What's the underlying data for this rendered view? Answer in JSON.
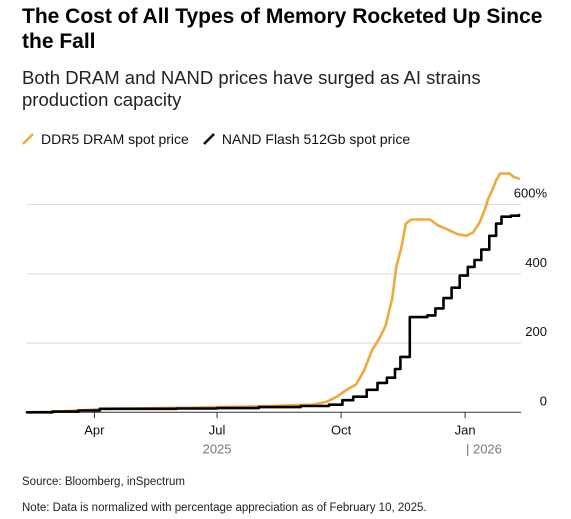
{
  "header": {
    "title": "The Cost of All Types of Memory Rocketed Up Since the Fall",
    "subtitle": "Both DRAM and NAND prices have surged as AI strains production capacity"
  },
  "footer": {
    "source": "Source: Bloomberg, inSpectrum",
    "note": "Note: Data is normalized with percentage appreciation as of February 10, 2025."
  },
  "colors": {
    "dram": "#f0a93b",
    "nand": "#000000",
    "grid": "#d9d9d9",
    "axis": "#333333"
  },
  "chart_data": {
    "type": "line",
    "title": "The Cost of All Types of Memory Rocketed Up Since the Fall",
    "subtitle": "Both DRAM and NAND prices have surged as AI strains production capacity",
    "xlabel": "",
    "ylabel": "",
    "xlim": [
      "2025-02-10",
      "2026-02-10"
    ],
    "ylim": [
      -5,
      700
    ],
    "y_ticks": [
      0,
      200,
      400,
      600
    ],
    "y_tick_labels": [
      "0",
      "200",
      "400",
      "600%"
    ],
    "x_ticks": [
      "2025-04-01",
      "2025-07-01",
      "2025-10-01",
      "2026-01-01"
    ],
    "x_tick_labels": [
      "Apr",
      "Jul",
      "Oct",
      "Jan"
    ],
    "year_labels": [
      {
        "date": "2025-07-01",
        "label": "2025"
      },
      {
        "date": "2026-01-15",
        "label": "| 2026"
      }
    ],
    "grid": true,
    "legend_position": "top-left",
    "series": [
      {
        "name": "DDR5 DRAM spot price",
        "color": "#f0a93b",
        "step": false,
        "points": [
          [
            "2025-02-10",
            0
          ],
          [
            "2025-02-25",
            1
          ],
          [
            "2025-03-10",
            3
          ],
          [
            "2025-03-25",
            6
          ],
          [
            "2025-04-10",
            10
          ],
          [
            "2025-05-01",
            11
          ],
          [
            "2025-05-20",
            12
          ],
          [
            "2025-06-10",
            13
          ],
          [
            "2025-07-01",
            15
          ],
          [
            "2025-07-20",
            16
          ],
          [
            "2025-08-10",
            18
          ],
          [
            "2025-08-25",
            20
          ],
          [
            "2025-09-10",
            22
          ],
          [
            "2025-09-20",
            30
          ],
          [
            "2025-09-28",
            45
          ],
          [
            "2025-10-05",
            65
          ],
          [
            "2025-10-12",
            80
          ],
          [
            "2025-10-18",
            120
          ],
          [
            "2025-10-24",
            180
          ],
          [
            "2025-10-29",
            210
          ],
          [
            "2025-11-03",
            250
          ],
          [
            "2025-11-08",
            330
          ],
          [
            "2025-11-11",
            420
          ],
          [
            "2025-11-15",
            480
          ],
          [
            "2025-11-18",
            545
          ],
          [
            "2025-11-22",
            557
          ],
          [
            "2025-12-01",
            557
          ],
          [
            "2025-12-06",
            557
          ],
          [
            "2025-12-12",
            540
          ],
          [
            "2025-12-18",
            530
          ],
          [
            "2025-12-26",
            515
          ],
          [
            "2026-01-02",
            510
          ],
          [
            "2026-01-07",
            520
          ],
          [
            "2026-01-12",
            550
          ],
          [
            "2026-01-16",
            590
          ],
          [
            "2026-01-18",
            615
          ],
          [
            "2026-01-21",
            640
          ],
          [
            "2026-01-24",
            670
          ],
          [
            "2026-01-27",
            690
          ],
          [
            "2026-02-03",
            690
          ],
          [
            "2026-02-06",
            680
          ],
          [
            "2026-02-10",
            675
          ]
        ]
      },
      {
        "name": "NAND Flash 512Gb spot price",
        "color": "#000000",
        "step": true,
        "points": [
          [
            "2025-02-10",
            0
          ],
          [
            "2025-03-01",
            2
          ],
          [
            "2025-03-20",
            5
          ],
          [
            "2025-04-05",
            10
          ],
          [
            "2025-05-01",
            10
          ],
          [
            "2025-06-01",
            11
          ],
          [
            "2025-07-01",
            12
          ],
          [
            "2025-08-01",
            15
          ],
          [
            "2025-09-01",
            18
          ],
          [
            "2025-09-22",
            22
          ],
          [
            "2025-10-02",
            35
          ],
          [
            "2025-10-10",
            45
          ],
          [
            "2025-10-20",
            65
          ],
          [
            "2025-10-28",
            85
          ],
          [
            "2025-11-04",
            100
          ],
          [
            "2025-11-10",
            125
          ],
          [
            "2025-11-14",
            160
          ],
          [
            "2025-11-21",
            275
          ],
          [
            "2025-12-04",
            280
          ],
          [
            "2025-12-10",
            300
          ],
          [
            "2025-12-16",
            330
          ],
          [
            "2025-12-22",
            360
          ],
          [
            "2025-12-28",
            395
          ],
          [
            "2026-01-03",
            420
          ],
          [
            "2026-01-08",
            440
          ],
          [
            "2026-01-13",
            470
          ],
          [
            "2026-01-19",
            510
          ],
          [
            "2026-01-24",
            545
          ],
          [
            "2026-01-28",
            565
          ],
          [
            "2026-02-04",
            568
          ],
          [
            "2026-02-10",
            570
          ]
        ]
      }
    ]
  }
}
